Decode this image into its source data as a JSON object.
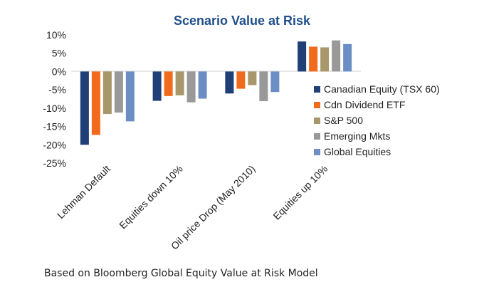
{
  "chart_data": {
    "type": "bar",
    "title": "Scenario Value at Risk",
    "categories": [
      "Lehman Default",
      "Equities down 10%",
      "Oil price Drop (May 2010)",
      "Equities up 10%"
    ],
    "series": [
      {
        "name": "Canadian Equity (TSX 60)",
        "color": "#1f3f76",
        "values": [
          -20,
          -8,
          -6,
          8.2
        ]
      },
      {
        "name": "Cdn Dividend ETF",
        "color": "#f26b1d",
        "values": [
          -17.3,
          -6.7,
          -4.7,
          6.8
        ]
      },
      {
        "name": "S&P 500",
        "color": "#a8976a",
        "values": [
          -11.6,
          -6.5,
          -3.7,
          6.6
        ]
      },
      {
        "name": "Emerging Mkts",
        "color": "#999999",
        "values": [
          -11.2,
          -8.4,
          -8.1,
          8.5
        ]
      },
      {
        "name": "Global Equities",
        "color": "#6b8ec4",
        "values": [
          -13.6,
          -7.4,
          -5.6,
          7.5
        ]
      }
    ],
    "yticks": [
      "10%",
      "5%",
      "0%",
      "-5%",
      "-10%",
      "-15%",
      "-20%",
      "-25%"
    ],
    "ylim": [
      -25,
      10
    ],
    "legend": "right",
    "grid": false
  },
  "footnote": "Based on Bloomberg Global Equity Value at Risk Model",
  "colors": {
    "title": "#1f4e8c",
    "axis": "#d0d0d0"
  }
}
